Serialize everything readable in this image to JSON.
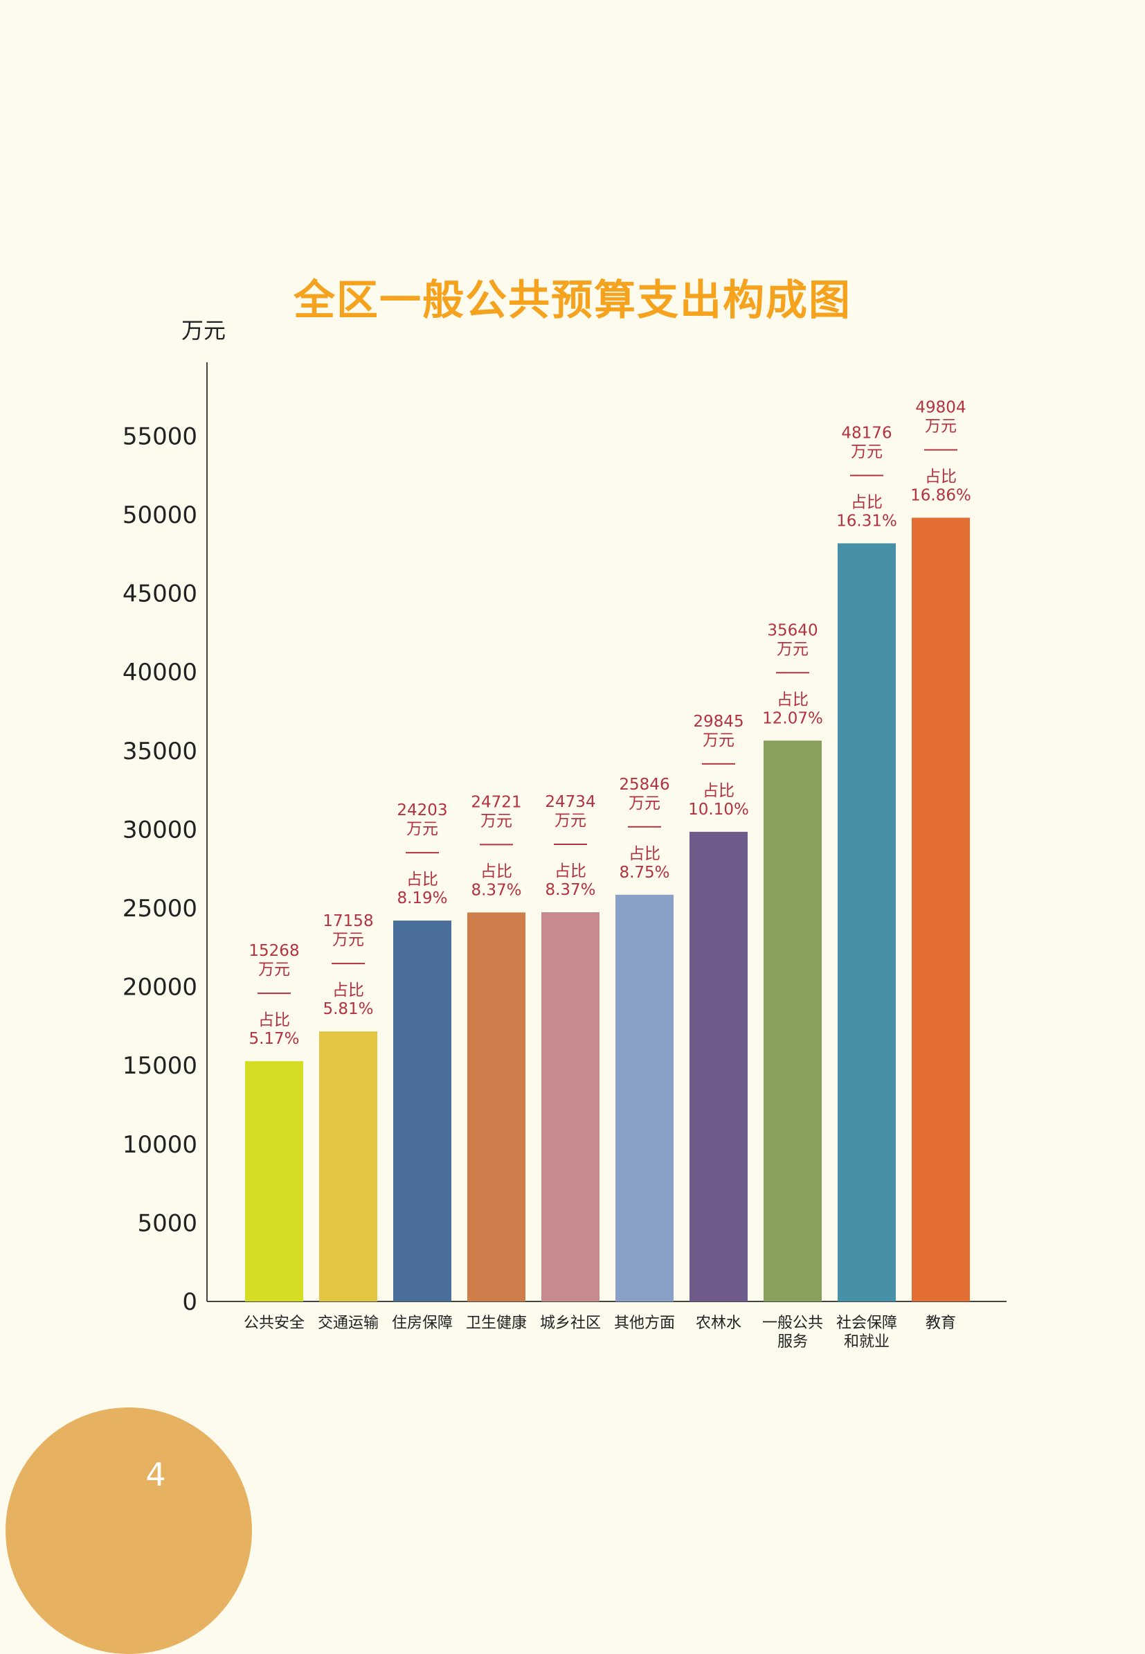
{
  "page_number": "4",
  "chart_data": {
    "type": "bar",
    "title": "全区一般公共预算支出构成图",
    "ylabel": "万元",
    "xlabel": "",
    "ylim": [
      0,
      60000
    ],
    "yticks": [
      0,
      5000,
      10000,
      15000,
      20000,
      25000,
      30000,
      35000,
      40000,
      45000,
      50000,
      55000
    ],
    "grid": false,
    "categories": [
      [
        "公共安全"
      ],
      [
        "交通运输"
      ],
      [
        "住房保障"
      ],
      [
        "卫生健康"
      ],
      [
        "城乡社区"
      ],
      [
        "其他方面"
      ],
      [
        "农林水"
      ],
      [
        "一般公共",
        "服务"
      ],
      [
        "社会保障",
        "和就业"
      ],
      [
        "教育"
      ]
    ],
    "values": [
      15268,
      17158,
      24203,
      24721,
      24734,
      25846,
      29845,
      35640,
      48176,
      49804
    ],
    "value_unit": "万元",
    "share_label": "占比",
    "shares": [
      "5.17%",
      "5.81%",
      "8.19%",
      "8.37%",
      "8.37%",
      "8.75%",
      "10.10%",
      "12.07%",
      "16.31%",
      "16.86%"
    ],
    "colors": [
      "#d5dd25",
      "#e4c443",
      "#4b6f9b",
      "#cf7e4b",
      "#c78b8e",
      "#89a1c6",
      "#6f5b8b",
      "#87a05b",
      "#4691a8",
      "#e26e34"
    ],
    "label_color": "#b2323f"
  }
}
